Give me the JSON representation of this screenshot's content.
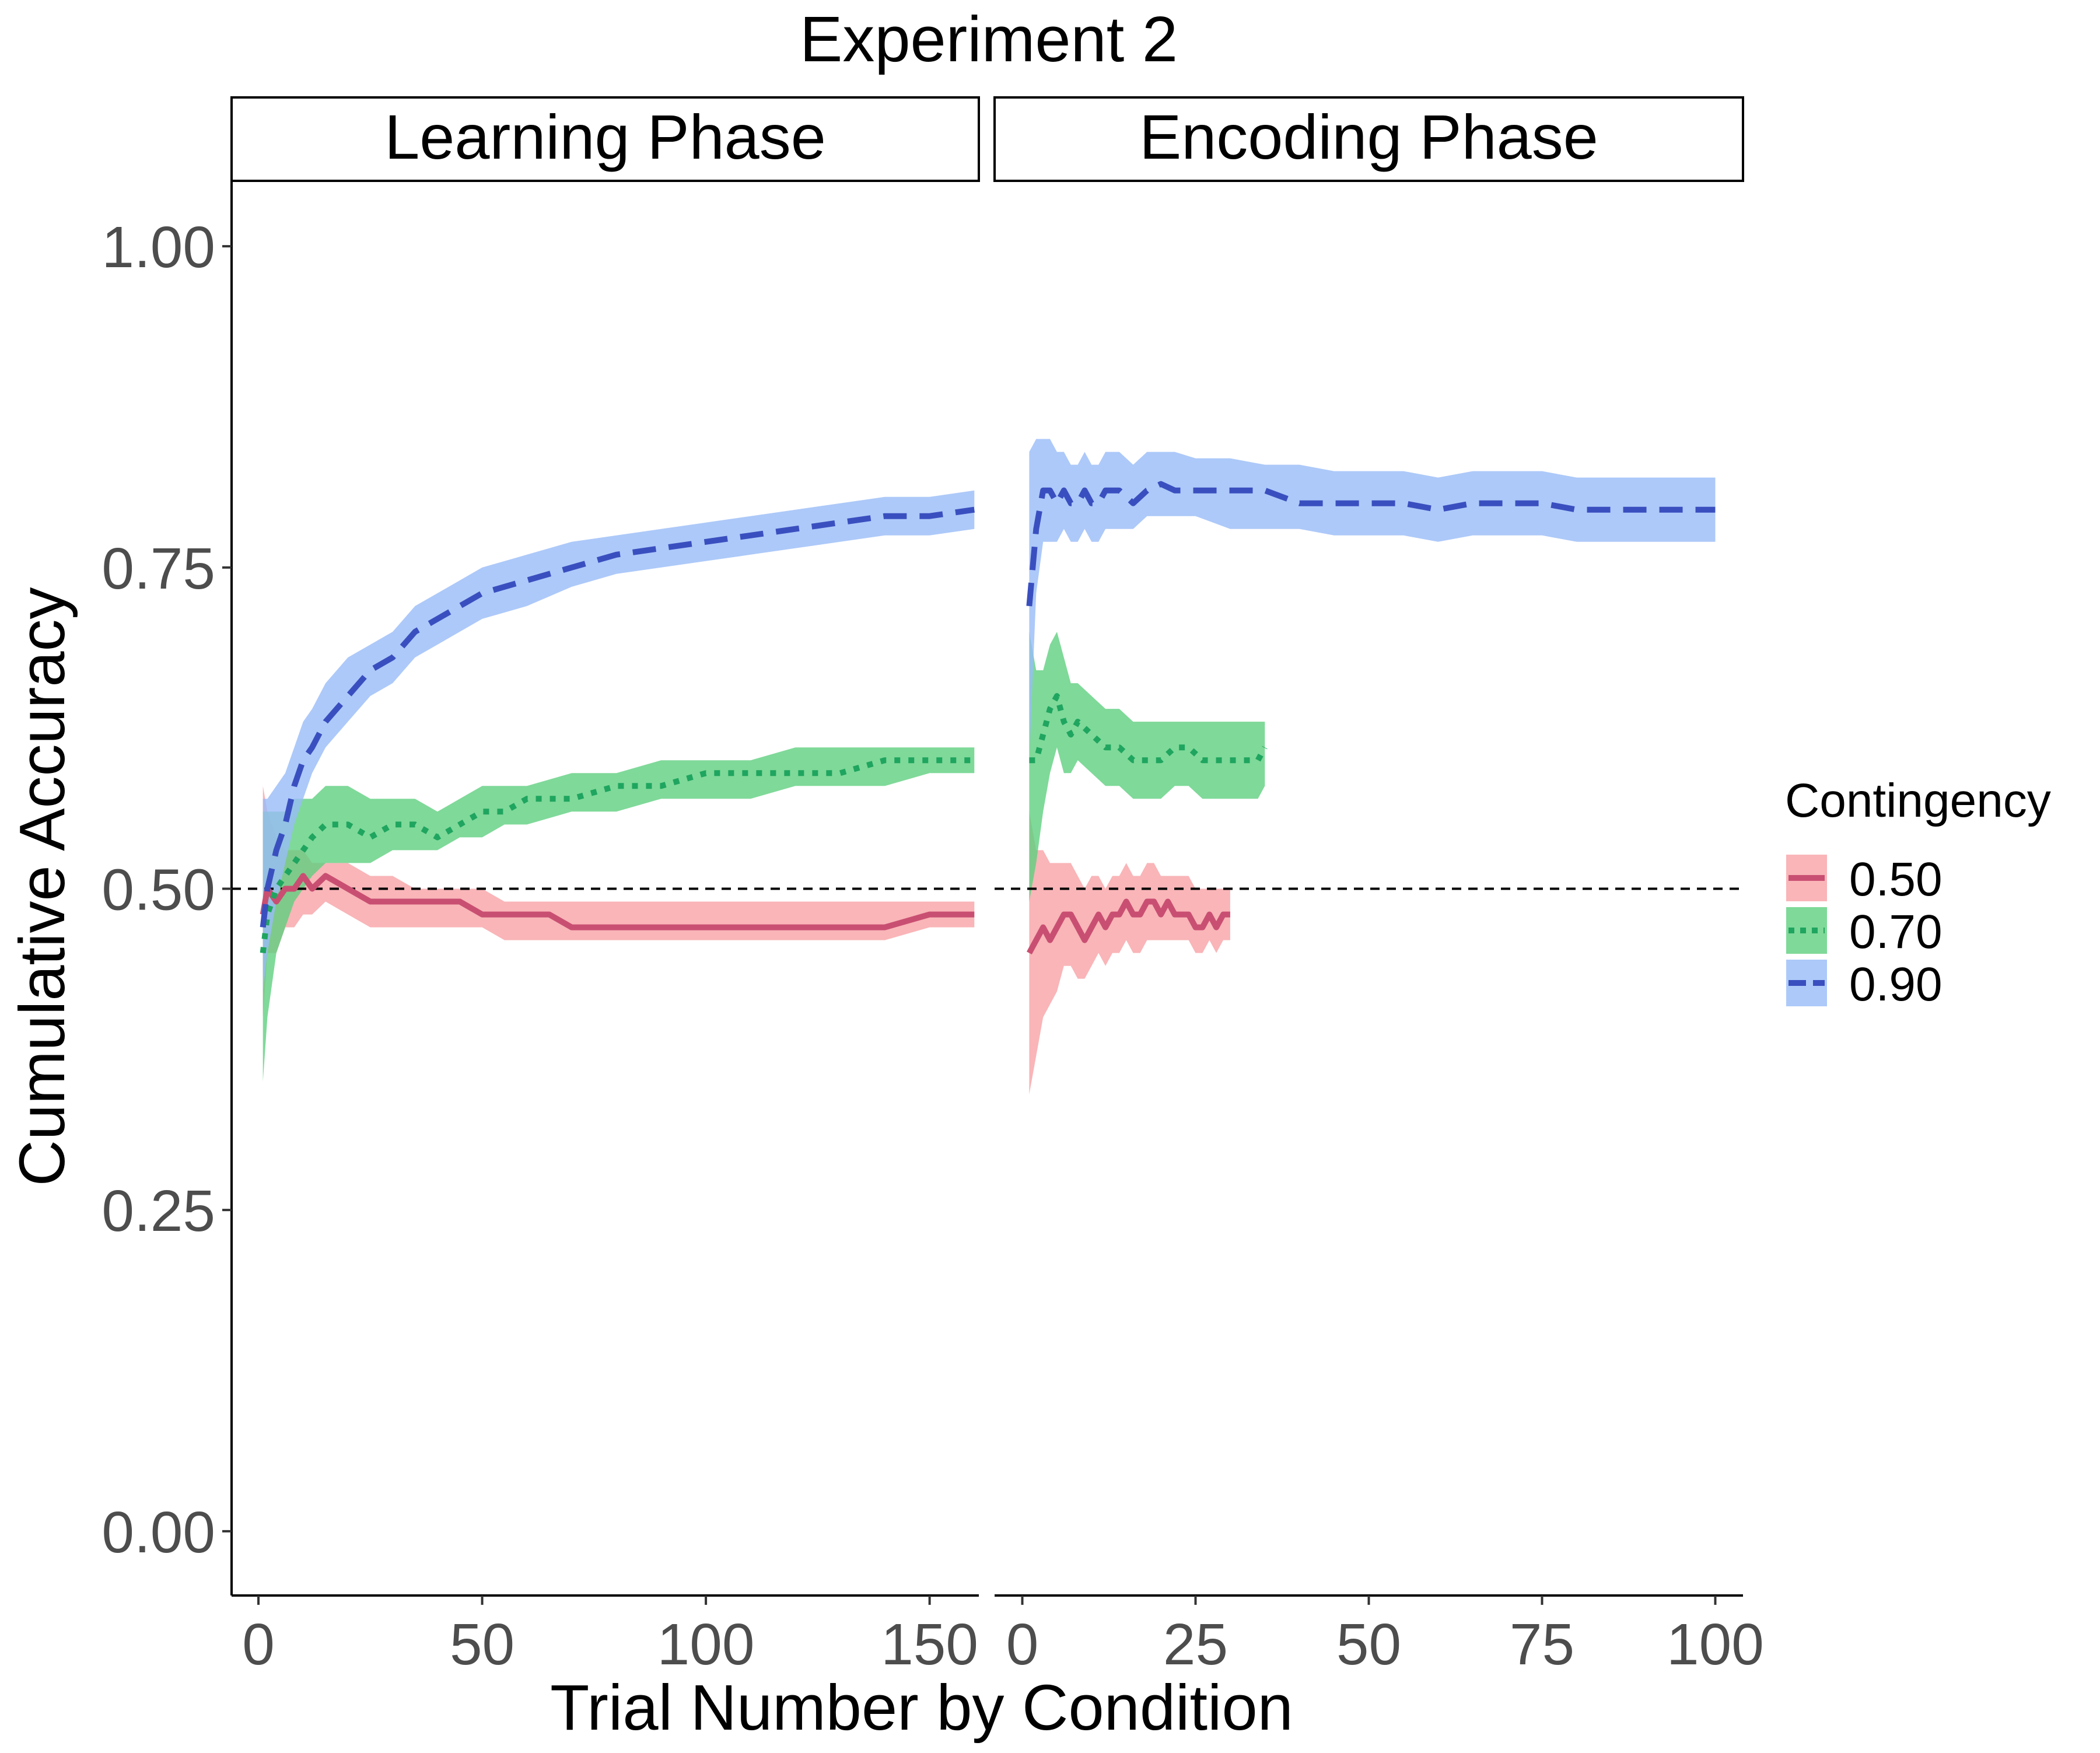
{
  "chart_data": {
    "type": "line",
    "title": "Experiment 2",
    "xlabel": "Trial Number by Condition",
    "ylabel": "Cumulative Accuracy",
    "ylim": [
      -0.05,
      1.05
    ],
    "y_ticks": [
      0,
      0.25,
      0.5,
      0.75,
      1.0
    ],
    "y_tick_labels": [
      "0.00",
      "0.25",
      "0.50",
      "0.75",
      "1.00"
    ],
    "reference_line": {
      "y": 0.5,
      "style": "dashed",
      "color": "#000000"
    },
    "grid": false,
    "legend": {
      "title": "Contingency",
      "placement": "right",
      "entries": [
        {
          "label": "0.50",
          "line_color": "#c94f72",
          "fill_color": "#f8a3a6",
          "dash": "solid"
        },
        {
          "label": "0.70",
          "line_color": "#1fa55f",
          "fill_color": "#5fd07f",
          "dash": "dotted"
        },
        {
          "label": "0.90",
          "line_color": "#3a4fbf",
          "fill_color": "#99bcf8",
          "dash": "dashed"
        }
      ]
    },
    "panels": [
      {
        "strip_label": "Learning Phase",
        "xlim": [
          -6,
          161
        ],
        "x_ticks": [
          0,
          50,
          100,
          150
        ],
        "x_tick_labels": [
          "0",
          "50",
          "100",
          "150"
        ],
        "series": [
          {
            "name": "0.50",
            "x": [
              1,
              2,
              4,
              6,
              8,
              10,
              12,
              15,
              20,
              25,
              30,
              35,
              40,
              45,
              50,
              55,
              60,
              65,
              70,
              75,
              80,
              90,
              100,
              110,
              120,
              130,
              140,
              150,
              160
            ],
            "y": [
              0.48,
              0.5,
              0.49,
              0.5,
              0.5,
              0.51,
              0.5,
              0.51,
              0.5,
              0.49,
              0.49,
              0.49,
              0.49,
              0.49,
              0.48,
              0.48,
              0.48,
              0.48,
              0.47,
              0.47,
              0.47,
              0.47,
              0.47,
              0.47,
              0.47,
              0.47,
              0.47,
              0.48,
              0.48
            ],
            "lower": [
              0.4,
              0.45,
              0.45,
              0.47,
              0.47,
              0.48,
              0.48,
              0.49,
              0.48,
              0.47,
              0.47,
              0.47,
              0.47,
              0.47,
              0.47,
              0.46,
              0.46,
              0.46,
              0.46,
              0.46,
              0.46,
              0.46,
              0.46,
              0.46,
              0.46,
              0.46,
              0.46,
              0.47,
              0.47
            ],
            "upper": [
              0.58,
              0.56,
              0.54,
              0.53,
              0.53,
              0.53,
              0.52,
              0.52,
              0.52,
              0.51,
              0.51,
              0.5,
              0.5,
              0.5,
              0.5,
              0.49,
              0.49,
              0.49,
              0.49,
              0.49,
              0.49,
              0.49,
              0.49,
              0.49,
              0.49,
              0.49,
              0.49,
              0.49,
              0.49
            ]
          },
          {
            "name": "0.70",
            "x": [
              1,
              2,
              4,
              6,
              8,
              10,
              12,
              15,
              20,
              25,
              30,
              35,
              40,
              45,
              50,
              55,
              60,
              70,
              80,
              90,
              100,
              110,
              120,
              130,
              140,
              150,
              160
            ],
            "y": [
              0.45,
              0.48,
              0.5,
              0.51,
              0.52,
              0.53,
              0.54,
              0.55,
              0.55,
              0.54,
              0.55,
              0.55,
              0.54,
              0.55,
              0.56,
              0.56,
              0.57,
              0.57,
              0.58,
              0.58,
              0.59,
              0.59,
              0.59,
              0.59,
              0.6,
              0.6,
              0.6
            ],
            "lower": [
              0.35,
              0.4,
              0.45,
              0.47,
              0.49,
              0.5,
              0.51,
              0.52,
              0.52,
              0.52,
              0.53,
              0.53,
              0.53,
              0.54,
              0.54,
              0.55,
              0.55,
              0.56,
              0.56,
              0.57,
              0.57,
              0.57,
              0.58,
              0.58,
              0.58,
              0.59,
              0.59
            ],
            "upper": [
              0.56,
              0.56,
              0.56,
              0.56,
              0.57,
              0.57,
              0.57,
              0.58,
              0.58,
              0.57,
              0.57,
              0.57,
              0.56,
              0.57,
              0.58,
              0.58,
              0.58,
              0.59,
              0.59,
              0.6,
              0.6,
              0.6,
              0.61,
              0.61,
              0.61,
              0.61,
              0.61
            ]
          },
          {
            "name": "0.90",
            "x": [
              1,
              2,
              4,
              6,
              8,
              10,
              12,
              15,
              20,
              25,
              30,
              35,
              40,
              50,
              60,
              70,
              80,
              90,
              100,
              110,
              120,
              130,
              140,
              150,
              160
            ],
            "y": [
              0.47,
              0.5,
              0.53,
              0.55,
              0.58,
              0.6,
              0.61,
              0.63,
              0.65,
              0.67,
              0.68,
              0.7,
              0.71,
              0.73,
              0.74,
              0.75,
              0.76,
              0.765,
              0.77,
              0.775,
              0.78,
              0.785,
              0.79,
              0.79,
              0.795
            ],
            "lower": [
              0.42,
              0.45,
              0.49,
              0.52,
              0.55,
              0.57,
              0.59,
              0.61,
              0.63,
              0.65,
              0.66,
              0.68,
              0.69,
              0.71,
              0.72,
              0.735,
              0.745,
              0.75,
              0.755,
              0.76,
              0.765,
              0.77,
              0.775,
              0.775,
              0.78
            ],
            "upper": [
              0.57,
              0.57,
              0.58,
              0.59,
              0.61,
              0.63,
              0.64,
              0.66,
              0.68,
              0.69,
              0.7,
              0.72,
              0.73,
              0.75,
              0.76,
              0.77,
              0.775,
              0.78,
              0.785,
              0.79,
              0.795,
              0.8,
              0.805,
              0.805,
              0.81
            ]
          }
        ]
      },
      {
        "strip_label": "Encoding Phase",
        "xlim": [
          -4,
          104
        ],
        "x_ticks": [
          0,
          25,
          50,
          75,
          100
        ],
        "x_tick_labels": [
          "0",
          "25",
          "50",
          "75",
          "100"
        ],
        "series": [
          {
            "name": "0.50",
            "x": [
              1,
              2,
              3,
              4,
              5,
              6,
              7,
              8,
              9,
              10,
              11,
              12,
              13,
              14,
              15,
              16,
              17,
              18,
              19,
              20,
              21,
              22,
              23,
              24,
              25,
              26,
              27,
              28,
              29,
              30
            ],
            "y": [
              0.45,
              0.46,
              0.47,
              0.46,
              0.47,
              0.48,
              0.48,
              0.47,
              0.46,
              0.47,
              0.48,
              0.47,
              0.48,
              0.48,
              0.49,
              0.48,
              0.48,
              0.49,
              0.49,
              0.48,
              0.49,
              0.48,
              0.48,
              0.48,
              0.47,
              0.47,
              0.48,
              0.47,
              0.48,
              0.48
            ],
            "lower": [
              0.34,
              0.37,
              0.4,
              0.41,
              0.42,
              0.44,
              0.44,
              0.43,
              0.43,
              0.44,
              0.45,
              0.44,
              0.45,
              0.45,
              0.46,
              0.45,
              0.45,
              0.46,
              0.46,
              0.46,
              0.46,
              0.46,
              0.46,
              0.46,
              0.45,
              0.45,
              0.46,
              0.45,
              0.46,
              0.46
            ],
            "upper": [
              0.56,
              0.53,
              0.53,
              0.52,
              0.52,
              0.52,
              0.52,
              0.51,
              0.5,
              0.51,
              0.51,
              0.5,
              0.51,
              0.51,
              0.52,
              0.51,
              0.51,
              0.52,
              0.52,
              0.51,
              0.51,
              0.51,
              0.51,
              0.51,
              0.5,
              0.5,
              0.5,
              0.5,
              0.5,
              0.5
            ]
          },
          {
            "name": "0.70",
            "x": [
              1,
              2,
              3,
              4,
              5,
              6,
              7,
              8,
              10,
              12,
              14,
              16,
              18,
              20,
              22,
              24,
              26,
              28,
              30,
              32,
              34,
              35
            ],
            "y": [
              0.6,
              0.6,
              0.62,
              0.64,
              0.65,
              0.63,
              0.62,
              0.63,
              0.62,
              0.61,
              0.61,
              0.6,
              0.6,
              0.6,
              0.61,
              0.61,
              0.6,
              0.6,
              0.6,
              0.6,
              0.6,
              0.61
            ],
            "lower": [
              0.49,
              0.52,
              0.56,
              0.59,
              0.61,
              0.59,
              0.59,
              0.6,
              0.59,
              0.58,
              0.58,
              0.57,
              0.57,
              0.57,
              0.58,
              0.58,
              0.57,
              0.57,
              0.57,
              0.57,
              0.57,
              0.58
            ],
            "upper": [
              0.7,
              0.67,
              0.67,
              0.69,
              0.7,
              0.68,
              0.66,
              0.66,
              0.65,
              0.64,
              0.64,
              0.63,
              0.63,
              0.63,
              0.63,
              0.63,
              0.63,
              0.63,
              0.63,
              0.63,
              0.63,
              0.63
            ]
          },
          {
            "name": "0.90",
            "x": [
              1,
              2,
              3,
              4,
              5,
              6,
              7,
              8,
              9,
              10,
              11,
              12,
              14,
              16,
              18,
              20,
              22,
              25,
              30,
              35,
              40,
              45,
              50,
              55,
              60,
              65,
              70,
              75,
              80,
              85,
              90,
              95,
              100
            ],
            "y": [
              0.72,
              0.78,
              0.81,
              0.81,
              0.8,
              0.81,
              0.8,
              0.8,
              0.81,
              0.8,
              0.8,
              0.81,
              0.81,
              0.8,
              0.81,
              0.815,
              0.81,
              0.81,
              0.81,
              0.81,
              0.8,
              0.8,
              0.8,
              0.8,
              0.795,
              0.8,
              0.8,
              0.8,
              0.795,
              0.795,
              0.795,
              0.795,
              0.795
            ],
            "lower": [
              0.6,
              0.73,
              0.77,
              0.77,
              0.77,
              0.78,
              0.77,
              0.77,
              0.78,
              0.77,
              0.77,
              0.78,
              0.78,
              0.78,
              0.79,
              0.79,
              0.79,
              0.79,
              0.78,
              0.78,
              0.78,
              0.775,
              0.775,
              0.775,
              0.77,
              0.775,
              0.775,
              0.775,
              0.77,
              0.77,
              0.77,
              0.77,
              0.77
            ],
            "upper": [
              0.84,
              0.85,
              0.85,
              0.85,
              0.84,
              0.84,
              0.83,
              0.83,
              0.84,
              0.83,
              0.83,
              0.84,
              0.84,
              0.83,
              0.84,
              0.84,
              0.84,
              0.835,
              0.835,
              0.83,
              0.83,
              0.825,
              0.825,
              0.825,
              0.82,
              0.825,
              0.825,
              0.825,
              0.82,
              0.82,
              0.82,
              0.82,
              0.82
            ]
          }
        ]
      }
    ]
  }
}
